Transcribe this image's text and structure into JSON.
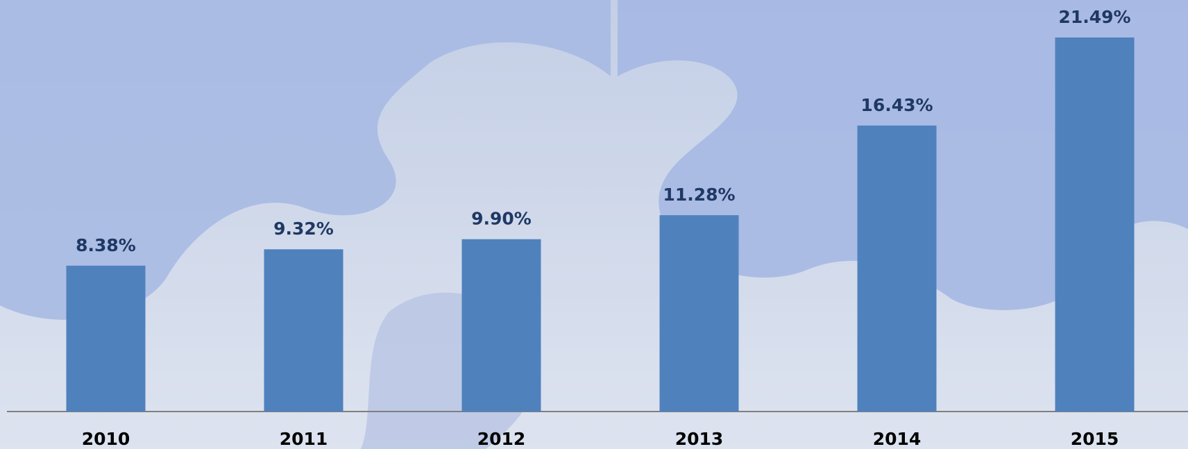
{
  "chart_data": {
    "type": "bar",
    "categories": [
      "2010",
      "2011",
      "2012",
      "2013",
      "2014",
      "2015"
    ],
    "values": [
      8.38,
      9.32,
      9.9,
      11.28,
      16.43,
      21.49
    ],
    "value_labels": [
      "8.38%",
      "9.32%",
      "9.90%",
      "11.28%",
      "16.43%",
      "21.49%"
    ],
    "color": "#4f81bd"
  }
}
